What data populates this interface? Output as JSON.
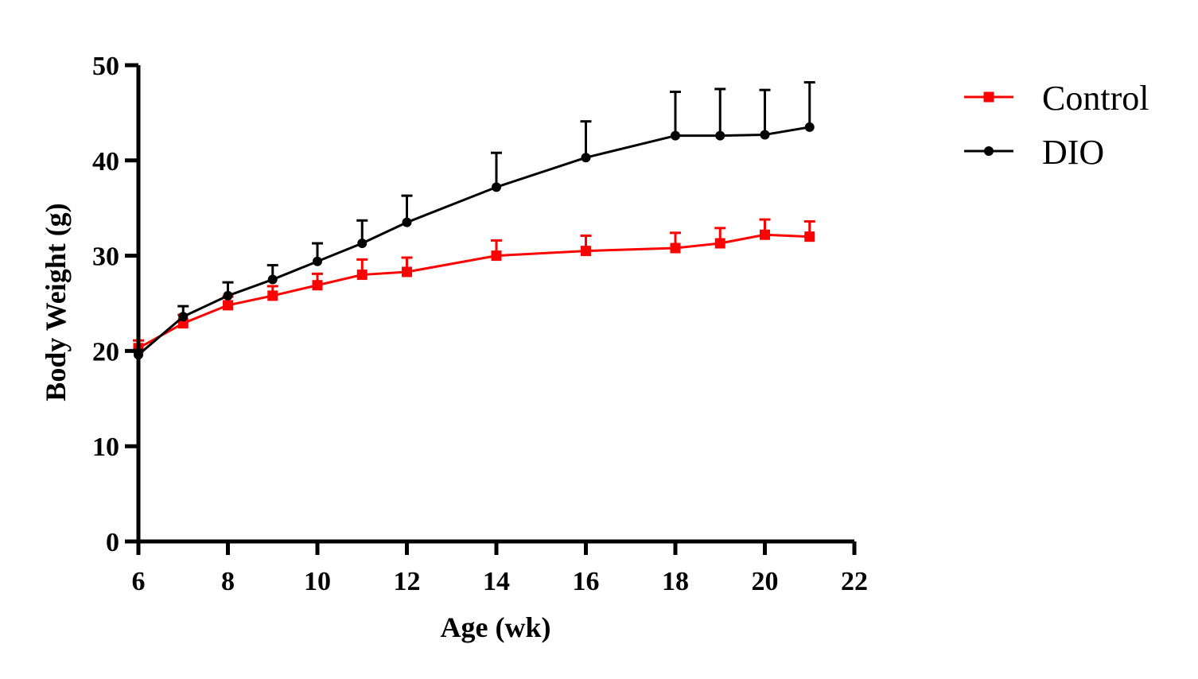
{
  "chart_data": {
    "type": "line",
    "title": "",
    "xlabel": "Age (wk)",
    "ylabel": "Body Weight (g)",
    "xlim": [
      6,
      22
    ],
    "ylim": [
      0,
      50
    ],
    "xticks": [
      "6",
      "8",
      "10",
      "12",
      "14",
      "16",
      "18",
      "20",
      "22"
    ],
    "yticks": [
      "0",
      "10",
      "20",
      "30",
      "40",
      "50"
    ],
    "grid": false,
    "legend_position": "top-right",
    "error_bars": "upper",
    "series": [
      {
        "name": "Control",
        "color": "#ff0000",
        "marker": "square",
        "x": [
          6,
          7,
          8,
          9,
          10,
          11,
          12,
          14,
          16,
          18,
          19,
          20,
          21
        ],
        "y": [
          20.3,
          22.9,
          24.8,
          25.8,
          26.9,
          28.0,
          28.3,
          30.0,
          30.5,
          30.8,
          31.3,
          32.2,
          32.0
        ],
        "err": [
          0.8,
          0.9,
          0.9,
          1.0,
          1.2,
          1.6,
          1.5,
          1.6,
          1.6,
          1.6,
          1.6,
          1.6,
          1.6
        ]
      },
      {
        "name": "DIO",
        "color": "#000000",
        "marker": "circle",
        "x": [
          6,
          7,
          8,
          9,
          10,
          11,
          12,
          14,
          16,
          18,
          19,
          20,
          21
        ],
        "y": [
          19.6,
          23.6,
          25.8,
          27.5,
          29.4,
          31.3,
          33.5,
          37.2,
          40.3,
          42.6,
          42.6,
          42.7,
          43.5
        ],
        "err": [
          0.5,
          1.1,
          1.4,
          1.5,
          1.9,
          2.4,
          2.8,
          3.6,
          3.8,
          4.6,
          4.9,
          4.7,
          4.7
        ]
      }
    ]
  }
}
